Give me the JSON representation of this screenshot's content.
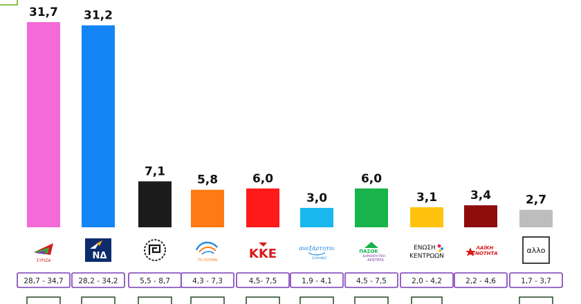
{
  "chart_data": {
    "type": "bar",
    "categories": [
      "ΣΥΡΙΖΑ",
      "ΝΔ",
      "Χρυσή Αυγή",
      "Το Ποτάμι",
      "ΚΚΕ",
      "Ανεξάρτητοι Έλληνες",
      "ΠΑΣΟΚ Δημοκρατική Αριστερά",
      "Ένωση Κεντρώων",
      "Λαϊκή Ενότητα",
      "άλλο"
    ],
    "values": [
      31.7,
      31.2,
      7.1,
      5.8,
      6.0,
      3.0,
      6.0,
      3.1,
      3.4,
      2.7
    ],
    "value_labels": [
      "31,7",
      "31,2",
      "7,1",
      "5,8",
      "6,0",
      "3,0",
      "6,0",
      "3,1",
      "3,4",
      "2,7"
    ],
    "ranges": [
      "28,7 - 34,7",
      "28,2 - 34,2",
      "5,5 - 8,7",
      "4,3 - 7,3",
      "4,5- 7,5",
      "1,9 - 4,1",
      "4,5 - 7,5",
      "2,0 - 4,2",
      "2,2 - 4,6",
      "1,7 - 3,7"
    ],
    "colors": [
      "#f46ad6",
      "#1485f5",
      "#1c1c1c",
      "#ff7a12",
      "#ff1a1a",
      "#18b7ee",
      "#18b34a",
      "#ffc20e",
      "#8e0c0c",
      "#bdbdbd"
    ],
    "ylim": [
      0,
      33
    ],
    "grid": false,
    "legend": "none",
    "logos": {
      "syriza": "ΣΥΡΙΖΑ",
      "nd": "ΝΔ",
      "potami": "ΤΟ ΠΟΤΑΜΙ",
      "kke": "ΚΚΕ",
      "anel": "ανεξάρτητοι",
      "anel_sub": "ΕΛΛΗΝΕΣ",
      "pasok": "ΠΑΣΟΚ",
      "pasok_sub1": "ΔΗΜΟΚΡΑΤΙΚΗ",
      "pasok_sub2": "ΑΡΙΣΤΕΡΑ",
      "ek1": "ΕΝΩΣΗ",
      "ek2": "ΚΕΝΤΡΩΩΝ",
      "le1": "ΛΑΪΚΗ",
      "le2": "ΕΝΟΤΗΤΑ",
      "other": "αλλο"
    }
  }
}
